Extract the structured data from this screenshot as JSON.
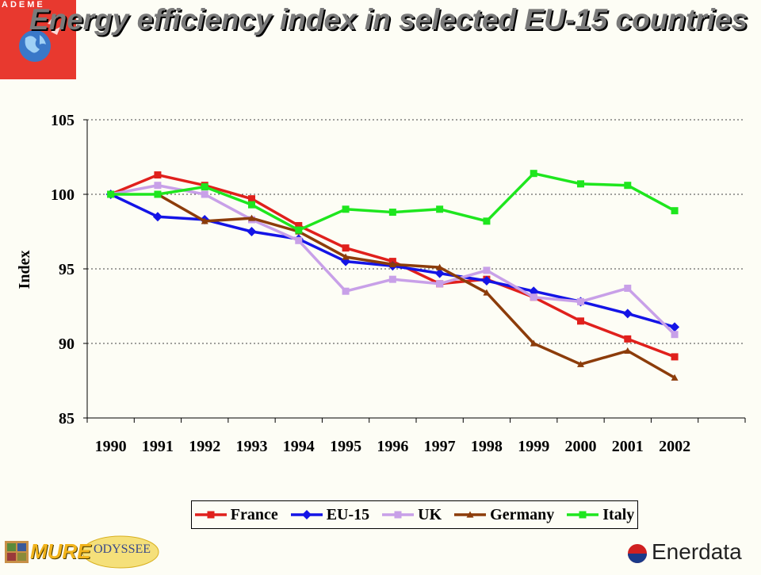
{
  "slide": {
    "title": "Energy efficiency index in selected EU-15 countries"
  },
  "logos": {
    "ademe": "ADEME",
    "mure": "MURE",
    "odyssee": "ODYSSEE",
    "enerdata": "Enerdata"
  },
  "chart_data": {
    "type": "line",
    "ylabel": "Index",
    "xlabel": "",
    "ylim": [
      85,
      105
    ],
    "yticks": [
      85,
      90,
      95,
      100,
      105
    ],
    "grid": "horizontal dotted",
    "legend_placement": "bottom",
    "categories": [
      "1990",
      "1991",
      "1992",
      "1993",
      "1994",
      "1995",
      "1996",
      "1997",
      "1998",
      "1999",
      "2000",
      "2001",
      "2002"
    ],
    "series": [
      {
        "name": "France",
        "color": "#e0201c",
        "marker": "square",
        "values": [
          100,
          101.3,
          100.6,
          99.7,
          97.9,
          96.4,
          95.5,
          94.0,
          94.3,
          93.1,
          91.5,
          90.3,
          89.1
        ]
      },
      {
        "name": "EU-15",
        "color": "#1414e6",
        "marker": "diamond",
        "values": [
          100,
          98.5,
          98.3,
          97.5,
          97.0,
          95.5,
          95.2,
          94.7,
          94.2,
          93.5,
          92.8,
          92.0,
          91.1
        ]
      },
      {
        "name": "UK",
        "color": "#c8a0e8",
        "marker": "square",
        "values": [
          100,
          100.6,
          100.0,
          98.3,
          96.9,
          93.5,
          94.3,
          94.0,
          94.9,
          93.1,
          92.8,
          93.7,
          90.6
        ]
      },
      {
        "name": "Germany",
        "color": "#8c3c0a",
        "marker": "triangle",
        "values": [
          null,
          100,
          98.2,
          98.4,
          97.5,
          95.8,
          95.3,
          95.1,
          93.4,
          90.0,
          88.6,
          89.5,
          87.7
        ]
      },
      {
        "name": "Italy",
        "color": "#1ee61e",
        "marker": "square",
        "values": [
          100,
          100,
          100.5,
          99.3,
          97.6,
          99.0,
          98.8,
          99.0,
          98.2,
          101.4,
          100.7,
          100.6,
          98.9
        ]
      }
    ]
  }
}
